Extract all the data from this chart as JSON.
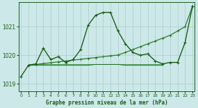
{
  "bg_color": "#cce8e8",
  "grid_color": "#aacccc",
  "line_color": "#1a5c1a",
  "xlabel": "Graphe pression niveau de la mer (hPa)",
  "ylim": [
    1018.75,
    1021.85
  ],
  "xlim": [
    -0.3,
    23.3
  ],
  "yticks": [
    1019,
    1020,
    1021
  ],
  "xticks": [
    0,
    1,
    2,
    3,
    4,
    5,
    6,
    7,
    8,
    9,
    10,
    11,
    12,
    13,
    14,
    15,
    16,
    17,
    18,
    19,
    20,
    21,
    22,
    23
  ],
  "series_main": {
    "x": [
      0,
      1,
      2,
      3,
      4,
      5,
      6,
      7,
      8,
      9,
      10,
      11,
      12,
      13,
      14,
      15,
      16,
      17,
      18,
      19,
      20,
      21,
      22,
      23
    ],
    "y": [
      1019.25,
      1019.65,
      1019.7,
      1020.25,
      1019.85,
      1019.95,
      1019.75,
      1019.85,
      1020.2,
      1021.05,
      1021.4,
      1021.5,
      1021.5,
      1020.85,
      1020.4,
      1020.1,
      1020.0,
      1020.05,
      1019.8,
      1019.7,
      1019.75,
      1019.75,
      1020.45,
      1021.72
    ],
    "color": "#1a5c1a",
    "lw": 1.0,
    "marker": "+",
    "ms": 3.5
  },
  "series_diagonal": {
    "x": [
      1,
      2,
      3,
      4,
      5,
      6,
      7,
      8,
      9,
      10,
      11,
      12,
      13,
      14,
      15,
      16,
      17,
      18,
      19,
      20,
      21,
      22,
      23
    ],
    "y": [
      1019.65,
      1019.68,
      1019.71,
      1019.74,
      1019.77,
      1019.8,
      1019.83,
      1019.86,
      1019.89,
      1019.92,
      1019.95,
      1019.98,
      1020.01,
      1020.1,
      1020.2,
      1020.3,
      1020.4,
      1020.5,
      1020.6,
      1020.7,
      1020.85,
      1021.0,
      1021.72
    ],
    "color": "#2d7a2d",
    "lw": 0.9,
    "marker": "+",
    "ms": 2.5
  },
  "series_flat1": {
    "x": [
      1,
      2,
      3,
      4,
      5,
      6,
      7,
      8,
      9,
      10,
      11,
      12,
      13,
      14,
      15,
      16,
      17,
      18,
      19
    ],
    "y": [
      1019.65,
      1019.65,
      1019.65,
      1019.65,
      1019.65,
      1019.65,
      1019.65,
      1019.65,
      1019.65,
      1019.68,
      1019.68,
      1019.68,
      1019.68,
      1019.65,
      1019.65,
      1019.65,
      1019.65,
      1019.65,
      1019.65
    ],
    "color": "#1a6b1a",
    "lw": 0.7
  },
  "series_flat2": {
    "x": [
      1,
      2,
      3,
      4,
      5,
      6,
      7,
      8,
      9,
      10,
      11,
      12,
      13,
      14,
      15,
      16,
      17,
      18,
      19
    ],
    "y": [
      1019.7,
      1019.7,
      1019.7,
      1019.7,
      1019.7,
      1019.7,
      1019.7,
      1019.7,
      1019.7,
      1019.7,
      1019.7,
      1019.7,
      1019.7,
      1019.7,
      1019.7,
      1019.7,
      1019.7,
      1019.7,
      1019.7
    ],
    "color": "#2d8b2d",
    "lw": 0.5
  }
}
